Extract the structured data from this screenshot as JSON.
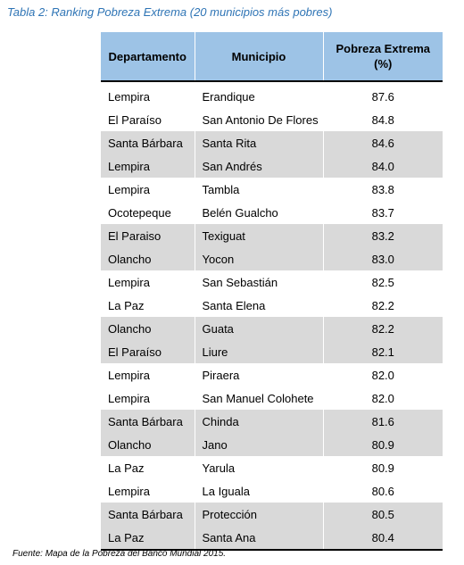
{
  "caption": "Tabla 2: Ranking Pobreza Extrema (20 municipios más pobres)",
  "headers": {
    "departamento": "Departamento",
    "municipio": "Municipio",
    "pobreza_line1": "Pobreza Extrema",
    "pobreza_line2": "(%)"
  },
  "rows": [
    {
      "departamento": "Lempira",
      "municipio": "Erandique",
      "pobreza": "87.6"
    },
    {
      "departamento": "El Paraíso",
      "municipio": "San Antonio De Flores",
      "pobreza": "84.8"
    },
    {
      "departamento": "Santa Bárbara",
      "municipio": "Santa Rita",
      "pobreza": "84.6"
    },
    {
      "departamento": "Lempira",
      "municipio": "San Andrés",
      "pobreza": "84.0"
    },
    {
      "departamento": "Lempira",
      "municipio": "Tambla",
      "pobreza": "83.8"
    },
    {
      "departamento": "Ocotepeque",
      "municipio": "Belén Gualcho",
      "pobreza": "83.7"
    },
    {
      "departamento": "El Paraiso",
      "municipio": "Texiguat",
      "pobreza": "83.2"
    },
    {
      "departamento": "Olancho",
      "municipio": "Yocon",
      "pobreza": "83.0"
    },
    {
      "departamento": "Lempira",
      "municipio": "San Sebastián",
      "pobreza": "82.5"
    },
    {
      "departamento": "La Paz",
      "municipio": "Santa Elena",
      "pobreza": "82.2"
    },
    {
      "departamento": "Olancho",
      "municipio": "Guata",
      "pobreza": "82.2"
    },
    {
      "departamento": "El Paraíso",
      "municipio": "Liure",
      "pobreza": "82.1"
    },
    {
      "departamento": "Lempira",
      "municipio": "Piraera",
      "pobreza": "82.0"
    },
    {
      "departamento": "Lempira",
      "municipio": "San Manuel Colohete",
      "pobreza": "82.0"
    },
    {
      "departamento": "Santa Bárbara",
      "municipio": "Chinda",
      "pobreza": "81.6"
    },
    {
      "departamento": "Olancho",
      "municipio": "Jano",
      "pobreza": "80.9"
    },
    {
      "departamento": "La Paz",
      "municipio": "Yarula",
      "pobreza": "80.9"
    },
    {
      "departamento": "Lempira",
      "municipio": "La Iguala",
      "pobreza": "80.6"
    },
    {
      "departamento": "Santa Bárbara",
      "municipio": "Protección",
      "pobreza": "80.5"
    },
    {
      "departamento": "La Paz",
      "municipio": "Santa Ana",
      "pobreza": "80.4"
    }
  ],
  "shaded_row_pairs": [
    2,
    3,
    6,
    7,
    10,
    11,
    14,
    15,
    18,
    19
  ],
  "colors": {
    "caption": "#2e74b5",
    "header_bg": "#9dc3e6",
    "shade_bg": "#d9d9d9"
  },
  "source": "Fuente: Mapa de la Pobreza del Banco Mundial 2015."
}
